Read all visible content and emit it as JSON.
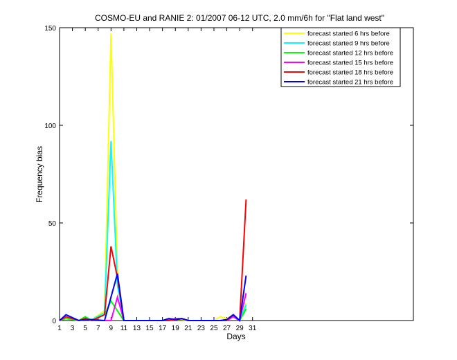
{
  "chart_data": {
    "type": "line",
    "title": "COSMO-EU and RANIE 2: 01/2007 06-12 UTC, 2.0 mm/6h for \"Flat land west\"",
    "xlabel": "Days",
    "ylabel": "Frequency bias",
    "xlim": [
      1,
      56
    ],
    "ylim": [
      0,
      150
    ],
    "xticks": [
      1,
      3,
      5,
      7,
      9,
      11,
      13,
      15,
      17,
      19,
      21,
      23,
      25,
      27,
      29,
      31
    ],
    "yticks": [
      0,
      50,
      100,
      150
    ],
    "legend_position": "top-right",
    "series": [
      {
        "name": "forecast started 6 hrs before",
        "color": "#ffff00",
        "points": [
          [
            1,
            0
          ],
          [
            2,
            2
          ],
          [
            4,
            0
          ],
          [
            5,
            1
          ],
          [
            6,
            0.5
          ],
          [
            8,
            5
          ],
          [
            9,
            147
          ],
          [
            10,
            25
          ],
          [
            11,
            0
          ],
          [
            16,
            0
          ],
          [
            17,
            0
          ],
          [
            18,
            0.5
          ],
          [
            19,
            0.5
          ],
          [
            20,
            0.5
          ],
          [
            21,
            0
          ],
          [
            25,
            0
          ],
          [
            26,
            2
          ],
          [
            27,
            1
          ],
          [
            28,
            3
          ],
          [
            29,
            0
          ],
          [
            30,
            9
          ]
        ]
      },
      {
        "name": "forecast started 9 hrs before",
        "color": "#00ffff",
        "points": [
          [
            1,
            0
          ],
          [
            2,
            2
          ],
          [
            4,
            0
          ],
          [
            5,
            1
          ],
          [
            6,
            0.5
          ],
          [
            8,
            4
          ],
          [
            9,
            92
          ],
          [
            10,
            18
          ],
          [
            11,
            0
          ],
          [
            16,
            0
          ],
          [
            17,
            0
          ],
          [
            18,
            1
          ],
          [
            19,
            0.5
          ],
          [
            20,
            1
          ],
          [
            21,
            0
          ],
          [
            26,
            0
          ],
          [
            27,
            0.5
          ],
          [
            28,
            2
          ],
          [
            29,
            0
          ],
          [
            30,
            8
          ]
        ]
      },
      {
        "name": "forecast started 12 hrs before",
        "color": "#00ff00",
        "points": [
          [
            1,
            0
          ],
          [
            2,
            1
          ],
          [
            4,
            0
          ],
          [
            5,
            2
          ],
          [
            6,
            0
          ],
          [
            8,
            3
          ],
          [
            9,
            10
          ],
          [
            10,
            5
          ],
          [
            11,
            0
          ],
          [
            17,
            0
          ],
          [
            18,
            0.5
          ],
          [
            19,
            1
          ],
          [
            20,
            1
          ],
          [
            21,
            0
          ],
          [
            26,
            0
          ],
          [
            27,
            0.5
          ],
          [
            28,
            2
          ],
          [
            29,
            0
          ],
          [
            30,
            6
          ]
        ]
      },
      {
        "name": "forecast started 15 hrs before",
        "color": "#ff00ff",
        "points": [
          [
            1,
            0
          ],
          [
            2,
            2
          ],
          [
            4,
            0
          ],
          [
            5,
            1
          ],
          [
            6,
            0
          ],
          [
            8,
            0
          ],
          [
            9,
            0
          ],
          [
            10,
            12
          ],
          [
            11,
            0
          ],
          [
            18,
            0
          ],
          [
            19,
            1
          ],
          [
            20,
            1
          ],
          [
            21,
            0
          ],
          [
            27,
            0
          ],
          [
            28,
            2
          ],
          [
            29,
            0
          ],
          [
            30,
            14
          ]
        ]
      },
      {
        "name": "forecast started 18 hrs before",
        "color": "#ff0000",
        "points": [
          [
            1,
            0
          ],
          [
            2,
            2
          ],
          [
            4,
            0
          ],
          [
            5,
            1
          ],
          [
            6,
            0
          ],
          [
            8,
            3
          ],
          [
            9,
            38
          ],
          [
            10,
            22
          ],
          [
            11,
            0
          ],
          [
            18,
            0
          ],
          [
            19,
            0.5
          ],
          [
            20,
            1
          ],
          [
            21,
            0
          ],
          [
            27,
            0
          ],
          [
            28,
            3
          ],
          [
            29,
            0
          ],
          [
            30,
            62
          ]
        ]
      },
      {
        "name": "forecast started 21 hrs before",
        "color": "#0000ff",
        "points": [
          [
            1,
            0
          ],
          [
            2,
            3
          ],
          [
            4,
            0
          ],
          [
            5,
            0.5
          ],
          [
            6,
            0.5
          ],
          [
            8,
            0
          ],
          [
            9,
            12
          ],
          [
            10,
            24
          ],
          [
            11,
            0
          ],
          [
            17,
            0
          ],
          [
            18,
            1
          ],
          [
            19,
            0.5
          ],
          [
            20,
            1
          ],
          [
            21,
            0
          ],
          [
            26,
            0
          ],
          [
            27,
            0.5
          ],
          [
            28,
            3
          ],
          [
            29,
            0
          ],
          [
            30,
            23
          ]
        ]
      }
    ]
  }
}
